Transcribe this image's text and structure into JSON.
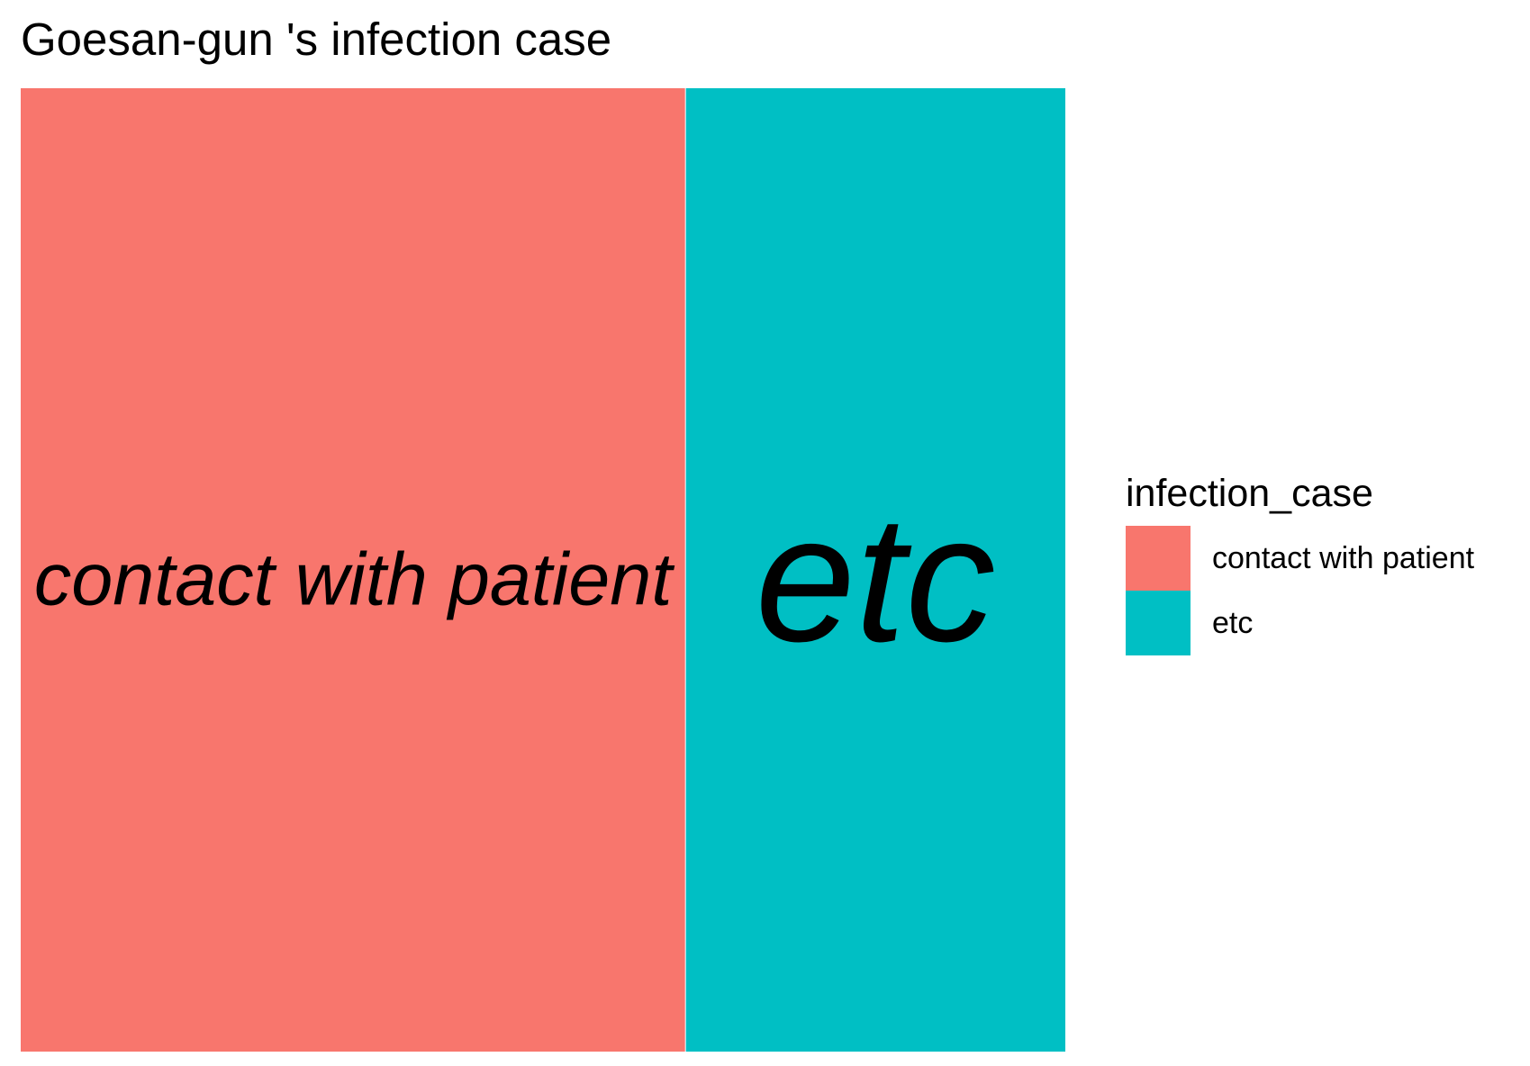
{
  "chart_data": {
    "type": "treemap",
    "title": "Goesan-gun 's infection case",
    "legend": {
      "title": "infection_case",
      "placement": "right"
    },
    "series": [
      {
        "name": "contact with patient",
        "value": 7,
        "color": "#F8766D"
      },
      {
        "name": "etc",
        "value": 4,
        "color": "#00BFC4"
      }
    ]
  }
}
